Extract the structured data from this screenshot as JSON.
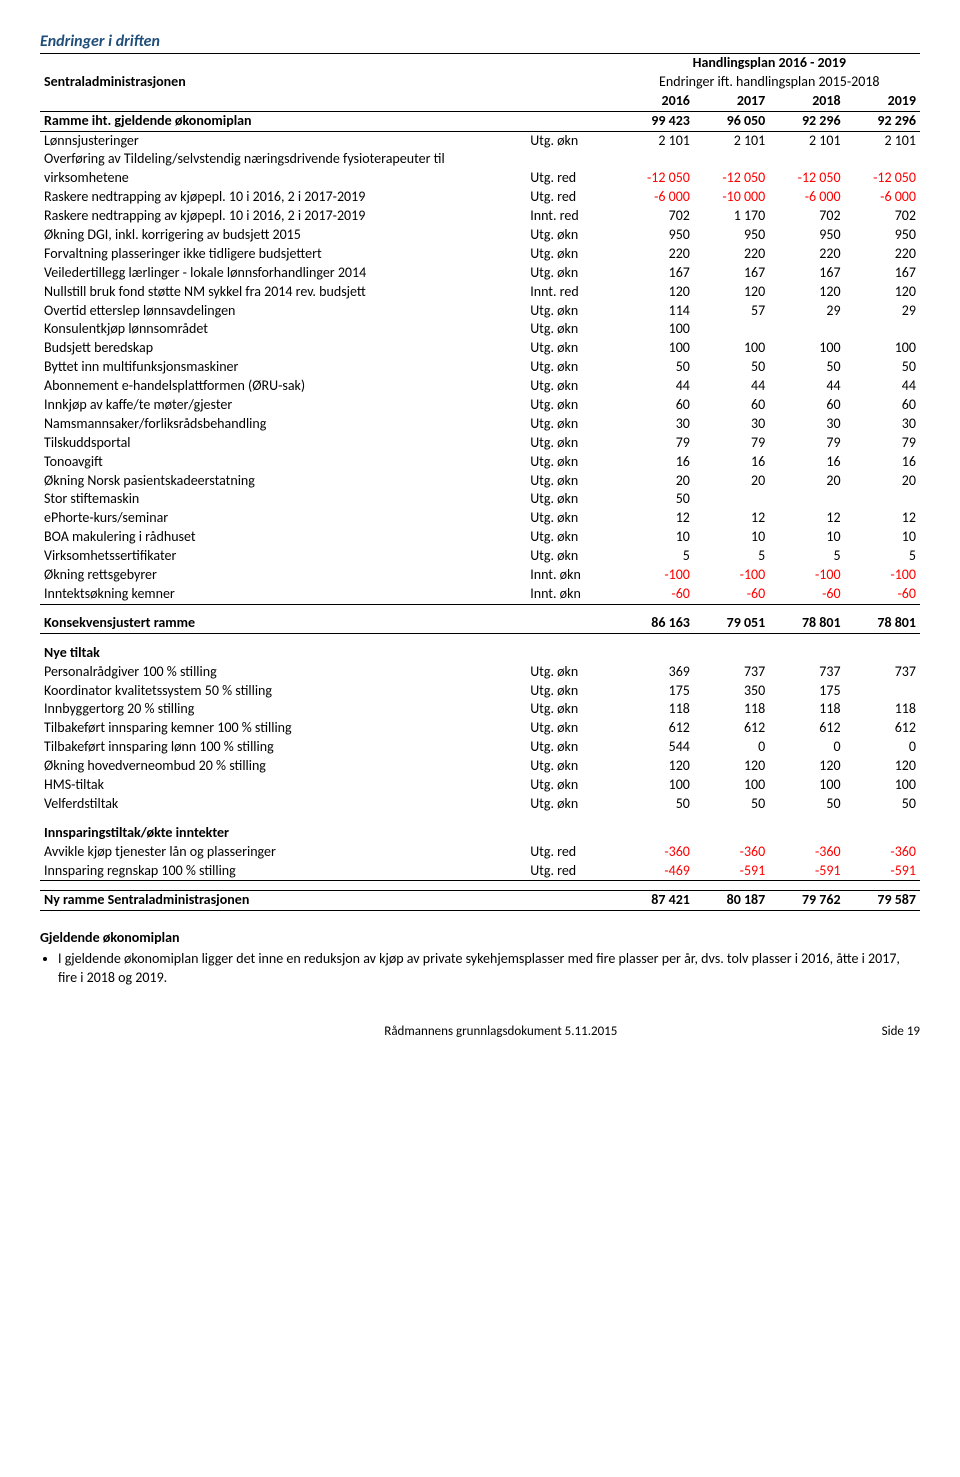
{
  "section_title": "Endringer i driften",
  "header": {
    "org": "Sentraladministrasjonen",
    "plan_title": "Handlingsplan 2016 - 2019",
    "plan_sub": "Endringer ift. handlingsplan 2015-2018",
    "years": [
      "2016",
      "2017",
      "2018",
      "2019"
    ]
  },
  "ramme_row": {
    "label": "Ramme iht. gjeldende økonomiplan",
    "vals": [
      "99 423",
      "96 050",
      "92 296",
      "92 296"
    ]
  },
  "rows": [
    {
      "label": "Lønnsjusteringer",
      "type": "Utg. økn",
      "vals": [
        "2 101",
        "2 101",
        "2 101",
        "2 101"
      ]
    },
    {
      "label": "Overføring av Tildeling/selvstendig næringsdrivende fysioterapeuter til virksomhetene",
      "type": "Utg. red",
      "vals": [
        "-12 050",
        "-12 050",
        "-12 050",
        "-12 050"
      ]
    },
    {
      "label": "Raskere nedtrapping av kjøpepl. 10 i 2016, 2 i 2017-2019",
      "type": "Utg. red",
      "vals": [
        "-6 000",
        "-10 000",
        "-6 000",
        "-6 000"
      ]
    },
    {
      "label": "Raskere nedtrapping av kjøpepl. 10 i 2016, 2 i 2017-2019",
      "type": "Innt. red",
      "vals": [
        "702",
        "1 170",
        "702",
        "702"
      ]
    },
    {
      "label": "Økning DGI, inkl. korrigering av budsjett 2015",
      "type": "Utg. økn",
      "vals": [
        "950",
        "950",
        "950",
        "950"
      ]
    },
    {
      "label": "Forvaltning plasseringer ikke tidligere budsjettert",
      "type": "Utg. økn",
      "vals": [
        "220",
        "220",
        "220",
        "220"
      ]
    },
    {
      "label": "Veiledertillegg lærlinger - lokale lønnsforhandlinger 2014",
      "type": "Utg. økn",
      "vals": [
        "167",
        "167",
        "167",
        "167"
      ]
    },
    {
      "label": "Nullstill bruk fond støtte NM sykkel fra 2014 rev. budsjett",
      "type": "Innt. red",
      "vals": [
        "120",
        "120",
        "120",
        "120"
      ]
    },
    {
      "label": "Overtid etterslep lønnsavdelingen",
      "type": "Utg. økn",
      "vals": [
        "114",
        "57",
        "29",
        "29"
      ]
    },
    {
      "label": "Konsulentkjøp lønnsområdet",
      "type": "Utg. økn",
      "vals": [
        "100",
        "",
        "",
        ""
      ]
    },
    {
      "label": "Budsjett beredskap",
      "type": "Utg. økn",
      "vals": [
        "100",
        "100",
        "100",
        "100"
      ]
    },
    {
      "label": "Byttet inn multifunksjonsmaskiner",
      "type": "Utg. økn",
      "vals": [
        "50",
        "50",
        "50",
        "50"
      ]
    },
    {
      "label": "Abonnement e-handelsplattformen (ØRU-sak)",
      "type": "Utg. økn",
      "vals": [
        "44",
        "44",
        "44",
        "44"
      ]
    },
    {
      "label": "Innkjøp av kaffe/te møter/gjester",
      "type": "Utg. økn",
      "vals": [
        "60",
        "60",
        "60",
        "60"
      ]
    },
    {
      "label": "Namsmannsaker/forliksrådsbehandling",
      "type": "Utg. økn",
      "vals": [
        "30",
        "30",
        "30",
        "30"
      ]
    },
    {
      "label": "Tilskuddsportal",
      "type": "Utg. økn",
      "vals": [
        "79",
        "79",
        "79",
        "79"
      ]
    },
    {
      "label": "Tonoavgift",
      "type": "Utg. økn",
      "vals": [
        "16",
        "16",
        "16",
        "16"
      ]
    },
    {
      "label": "Økning Norsk pasientskadeerstatning",
      "type": "Utg. økn",
      "vals": [
        "20",
        "20",
        "20",
        "20"
      ]
    },
    {
      "label": "Stor stiftemaskin",
      "type": "Utg. økn",
      "vals": [
        "50",
        "",
        "",
        ""
      ]
    },
    {
      "label": "ePhorte-kurs/seminar",
      "type": "Utg. økn",
      "vals": [
        "12",
        "12",
        "12",
        "12"
      ]
    },
    {
      "label": "BOA makulering i rådhuset",
      "type": "Utg. økn",
      "vals": [
        "10",
        "10",
        "10",
        "10"
      ]
    },
    {
      "label": "Virksomhetssertifikater",
      "type": "Utg. økn",
      "vals": [
        "5",
        "5",
        "5",
        "5"
      ]
    },
    {
      "label": "Økning rettsgebyrer",
      "type": "Innt. økn",
      "vals": [
        "-100",
        "-100",
        "-100",
        "-100"
      ]
    },
    {
      "label": "Inntektsøkning kemner",
      "type": "Innt. økn",
      "vals": [
        "-60",
        "-60",
        "-60",
        "-60"
      ]
    }
  ],
  "konsekvens": {
    "label": "Konsekvensjustert ramme",
    "vals": [
      "86 163",
      "79 051",
      "78 801",
      "78 801"
    ]
  },
  "nye_tiltak_header": "Nye tiltak",
  "nye_tiltak": [
    {
      "label": "Personalrådgiver 100 % stilling",
      "type": "Utg. økn",
      "vals": [
        "369",
        "737",
        "737",
        "737"
      ]
    },
    {
      "label": "Koordinator kvalitetssystem 50 % stilling",
      "type": "Utg. økn",
      "vals": [
        "175",
        "350",
        "175",
        ""
      ]
    },
    {
      "label": "Innbyggertorg 20 % stilling",
      "type": "Utg. økn",
      "vals": [
        "118",
        "118",
        "118",
        "118"
      ]
    },
    {
      "label": "Tilbakeført innsparing kemner 100 % stilling",
      "type": "Utg. økn",
      "vals": [
        "612",
        "612",
        "612",
        "612"
      ]
    },
    {
      "label": "Tilbakeført innsparing lønn 100 % stilling",
      "type": "Utg. økn",
      "vals": [
        "544",
        "0",
        "0",
        "0"
      ]
    },
    {
      "label": "Økning hovedverneombud 20 % stilling",
      "type": "Utg. økn",
      "vals": [
        "120",
        "120",
        "120",
        "120"
      ]
    },
    {
      "label": "HMS-tiltak",
      "type": "Utg. økn",
      "vals": [
        "100",
        "100",
        "100",
        "100"
      ]
    },
    {
      "label": "Velferdstiltak",
      "type": "Utg. økn",
      "vals": [
        "50",
        "50",
        "50",
        "50"
      ]
    }
  ],
  "innsparing_header": "Innsparingstiltak/økte inntekter",
  "innsparing": [
    {
      "label": "Avvikle kjøp tjenester lån og plasseringer",
      "type": "Utg. red",
      "vals": [
        "-360",
        "-360",
        "-360",
        "-360"
      ]
    },
    {
      "label": "Innsparing regnskap 100 % stilling",
      "type": "Utg. red",
      "vals": [
        "-469",
        "-591",
        "-591",
        "-591"
      ]
    }
  ],
  "ny_ramme": {
    "label": "Ny ramme Sentraladministrasjonen",
    "vals": [
      "87 421",
      "80 187",
      "79 762",
      "79 587"
    ]
  },
  "body": {
    "heading": "Gjeldende økonomiplan",
    "bullet": "I gjeldende økonomiplan ligger det inne en reduksjon av kjøp av private sykehjemsplasser med fire plasser per år, dvs. tolv plasser i 2016, åtte i 2017, fire i 2018 og 2019."
  },
  "footer": {
    "center": "Rådmannens grunnlagsdokument 5.11.2015",
    "right": "Side 19"
  },
  "colors": {
    "title": "#1f4e79",
    "negative": "#ff0000",
    "text": "#000000",
    "background": "#ffffff"
  }
}
